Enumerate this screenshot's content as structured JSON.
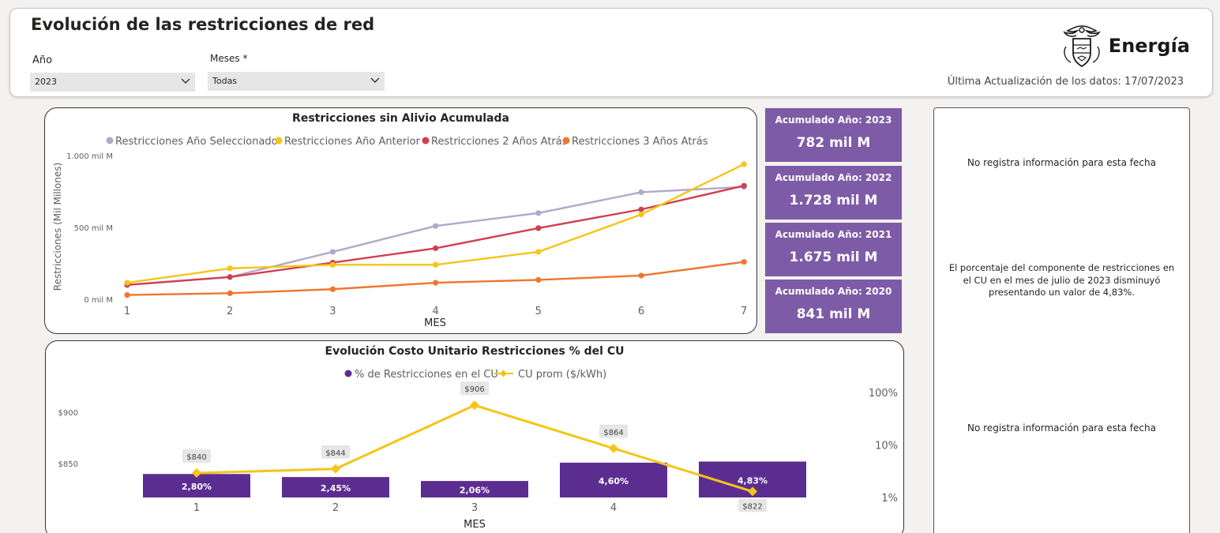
{
  "header": {
    "title": "Evolución de las restricciones de red",
    "year_label": "Año",
    "year_value": "2023",
    "month_label": "Meses *",
    "month_value": "Todas",
    "logo_text": "Energía",
    "update_text": "Última Actualización de los datos: 17/07/2023"
  },
  "kpis": [
    {
      "title": "Acumulado Año: 2023",
      "value": "782 mil M"
    },
    {
      "title": "Acumulado Año: 2022",
      "value": "1.728 mil M"
    },
    {
      "title": "Acumulado Año: 2021",
      "value": "1.675 mil M"
    },
    {
      "title": "Acumulado Año: 2020",
      "value": "841 mil M"
    }
  ],
  "info": {
    "message_top": "No registra información para esta fecha",
    "message_middle": "El porcentaje del componente de restricciones en el CU en el mes de julio de 2023 disminuyó presentando un valor de 4,83%.",
    "message_bottom": "No registra información para esta fecha"
  },
  "chart_data": [
    {
      "type": "line",
      "title": "Restricciones sin Alivio Acumulada",
      "xlabel": "MES",
      "ylabel": "Restricciones (Mil Millones)",
      "x": [
        1,
        2,
        3,
        4,
        5,
        6,
        7
      ],
      "y_ticks": [
        "0 mil M",
        "500 mil M",
        "1.000 mil M"
      ],
      "ylim": [
        0,
        1000
      ],
      "legend_position": "top",
      "series": [
        {
          "name": "Restricciones Año Seleccionado",
          "color": "#b4a7cc",
          "values": [
            100,
            155,
            330,
            510,
            600,
            745,
            782
          ]
        },
        {
          "name": "Restricciones Año Anterior",
          "color": "#f5c518",
          "values": [
            115,
            215,
            240,
            240,
            330,
            590,
            940
          ]
        },
        {
          "name": "Restricciones 2 Años Atrás",
          "color": "#d13f4f",
          "values": [
            100,
            155,
            255,
            355,
            495,
            625,
            790
          ]
        },
        {
          "name": "Restricciones 3 Años Atrás",
          "color": "#f07530",
          "values": [
            30,
            42,
            70,
            115,
            135,
            165,
            260
          ]
        }
      ]
    },
    {
      "type": "bar",
      "title": "Evolución Costo Unitario Restricciones % del CU",
      "xlabel": "MES",
      "categories": [
        "1",
        "2",
        "3",
        "4",
        "5"
      ],
      "legend_position": "top",
      "y_left_ticks": [
        "$900",
        "$850"
      ],
      "y_right_ticks": [
        "100%",
        "10%",
        "1%"
      ],
      "y_right_scale": "log",
      "series": [
        {
          "name": "% de Restricciones en el CU",
          "color": "#5c2d91",
          "values": [
            2.8,
            2.45,
            2.06,
            4.6,
            4.83
          ],
          "labels": [
            "2,80%",
            "2,45%",
            "2,06%",
            "4,60%",
            "4,83%"
          ]
        },
        {
          "name": "CU prom ($/kWh)",
          "color": "#f5c518",
          "values": [
            840,
            844,
            906,
            864,
            822
          ],
          "labels": [
            "$840",
            "$844",
            "$906",
            "$864",
            "$822"
          ]
        }
      ]
    }
  ]
}
